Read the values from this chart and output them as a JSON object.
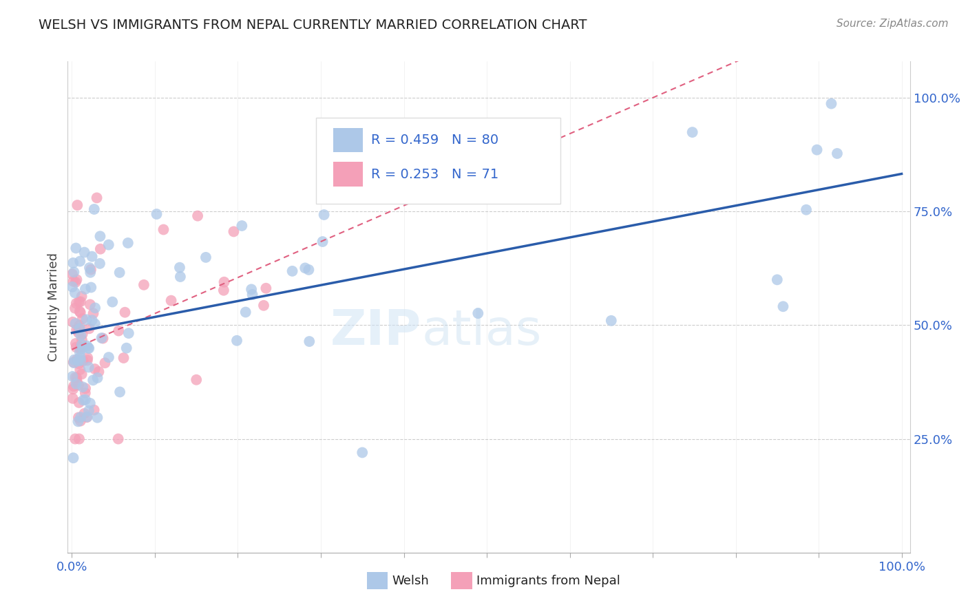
{
  "title": "WELSH VS IMMIGRANTS FROM NEPAL CURRENTLY MARRIED CORRELATION CHART",
  "source_text": "Source: ZipAtlas.com",
  "ylabel": "Currently Married",
  "welsh_R": 0.459,
  "welsh_N": 80,
  "nepal_R": 0.253,
  "nepal_N": 71,
  "welsh_color": "#adc8e8",
  "nepal_color": "#f4a0b8",
  "welsh_trend_color": "#2a5caa",
  "nepal_trend_color": "#e06080",
  "watermark_zip": "ZIP",
  "watermark_atlas": "atlas",
  "welsh_legend_label": "Welsh",
  "nepal_legend_label": "Immigrants from Nepal",
  "y_ticks": [
    25,
    50,
    75,
    100
  ],
  "y_tick_labels": [
    "25.0%",
    "50.0%",
    "75.0%",
    "100.0%"
  ],
  "x_min": 0,
  "x_max": 100,
  "y_min": 0,
  "y_max": 108,
  "title_fontsize": 14,
  "tick_fontsize": 13,
  "source_fontsize": 11
}
